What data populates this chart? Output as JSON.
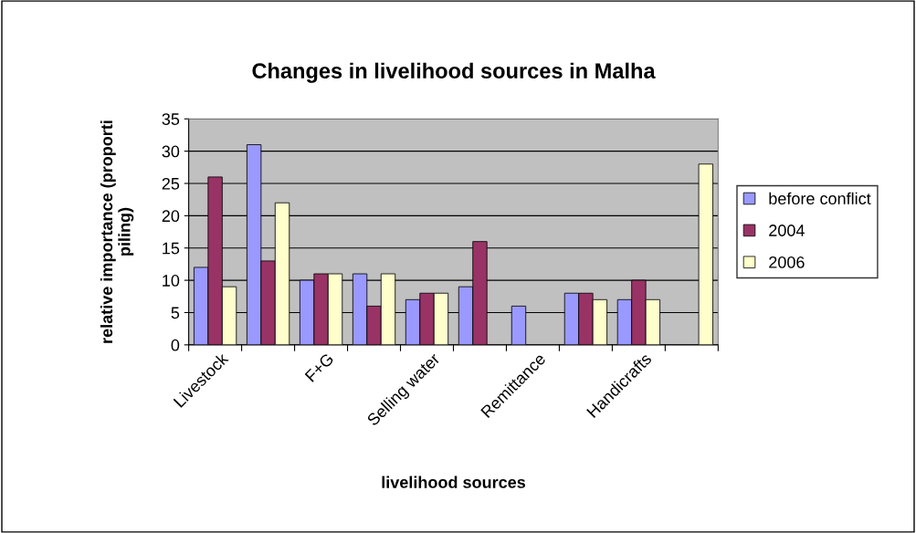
{
  "chart_data": {
    "type": "bar",
    "title": "Changes in livelihood sources in Malha",
    "xlabel": "livelihood sources",
    "ylabel": "relative importance (proporti\npiling)",
    "categories": [
      "Livestock",
      null,
      "F+G",
      null,
      "Selling water",
      null,
      "Remittance",
      null,
      "Handicrafts",
      null
    ],
    "series": [
      {
        "name": "before conflict",
        "color": "#9999ff",
        "values": [
          12,
          31,
          10,
          11,
          7,
          9,
          6,
          8,
          7,
          null
        ]
      },
      {
        "name": "2004",
        "color": "#993366",
        "values": [
          26,
          13,
          11,
          6,
          8,
          16,
          null,
          8,
          10,
          null
        ]
      },
      {
        "name": "2006",
        "color": "#ffffcc",
        "values": [
          9,
          22,
          11,
          11,
          8,
          null,
          null,
          7,
          7,
          28
        ]
      }
    ],
    "ylim": [
      0,
      35
    ],
    "yticks": [
      0,
      5,
      10,
      15,
      20,
      25,
      30,
      35
    ],
    "grid": "y",
    "legend": "right"
  }
}
